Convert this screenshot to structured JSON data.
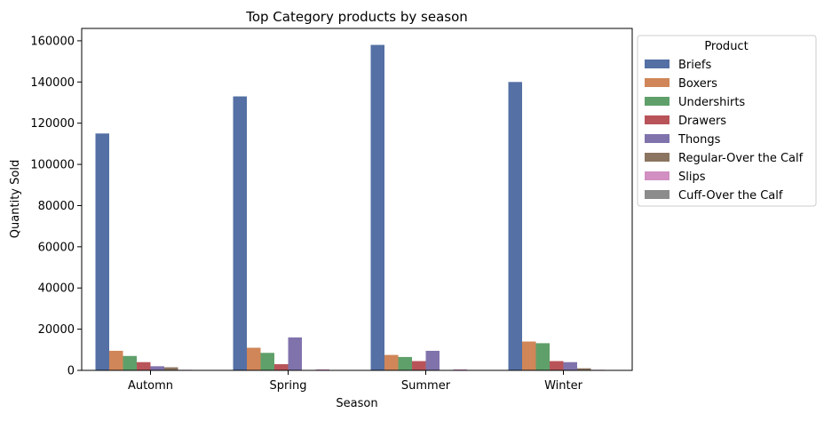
{
  "chart_data": {
    "type": "bar",
    "title": "Top Category products by season",
    "xlabel": "Season",
    "ylabel": "Quantity Sold",
    "categories": [
      "Automn",
      "Spring",
      "Summer",
      "Winter"
    ],
    "ylim": [
      0,
      166000
    ],
    "yticks": [
      0,
      20000,
      40000,
      60000,
      80000,
      100000,
      120000,
      140000,
      160000
    ],
    "grid": false,
    "legend": {
      "title": "Product",
      "placement": "outside-right"
    },
    "series": [
      {
        "name": "Briefs",
        "color": "#5470a4",
        "values": [
          115000,
          133000,
          158000,
          140000
        ]
      },
      {
        "name": "Boxers",
        "color": "#d08658",
        "values": [
          9500,
          11000,
          7500,
          14000
        ]
      },
      {
        "name": "Undershirts",
        "color": "#5fa06a",
        "values": [
          7000,
          8500,
          6500,
          13200
        ]
      },
      {
        "name": "Drawers",
        "color": "#b85459",
        "values": [
          4000,
          3000,
          4500,
          4500
        ]
      },
      {
        "name": "Thongs",
        "color": "#8073ac",
        "values": [
          2000,
          16000,
          9500,
          4000
        ]
      },
      {
        "name": "Regular-Over the Calf",
        "color": "#8b7560",
        "values": [
          1500,
          0,
          0,
          1000
        ]
      },
      {
        "name": "Slips",
        "color": "#d18fc2",
        "values": [
          300,
          500,
          500,
          300
        ]
      },
      {
        "name": "Cuff-Over the Calf",
        "color": "#8c8c8c",
        "values": [
          0,
          0,
          0,
          0
        ]
      }
    ]
  }
}
